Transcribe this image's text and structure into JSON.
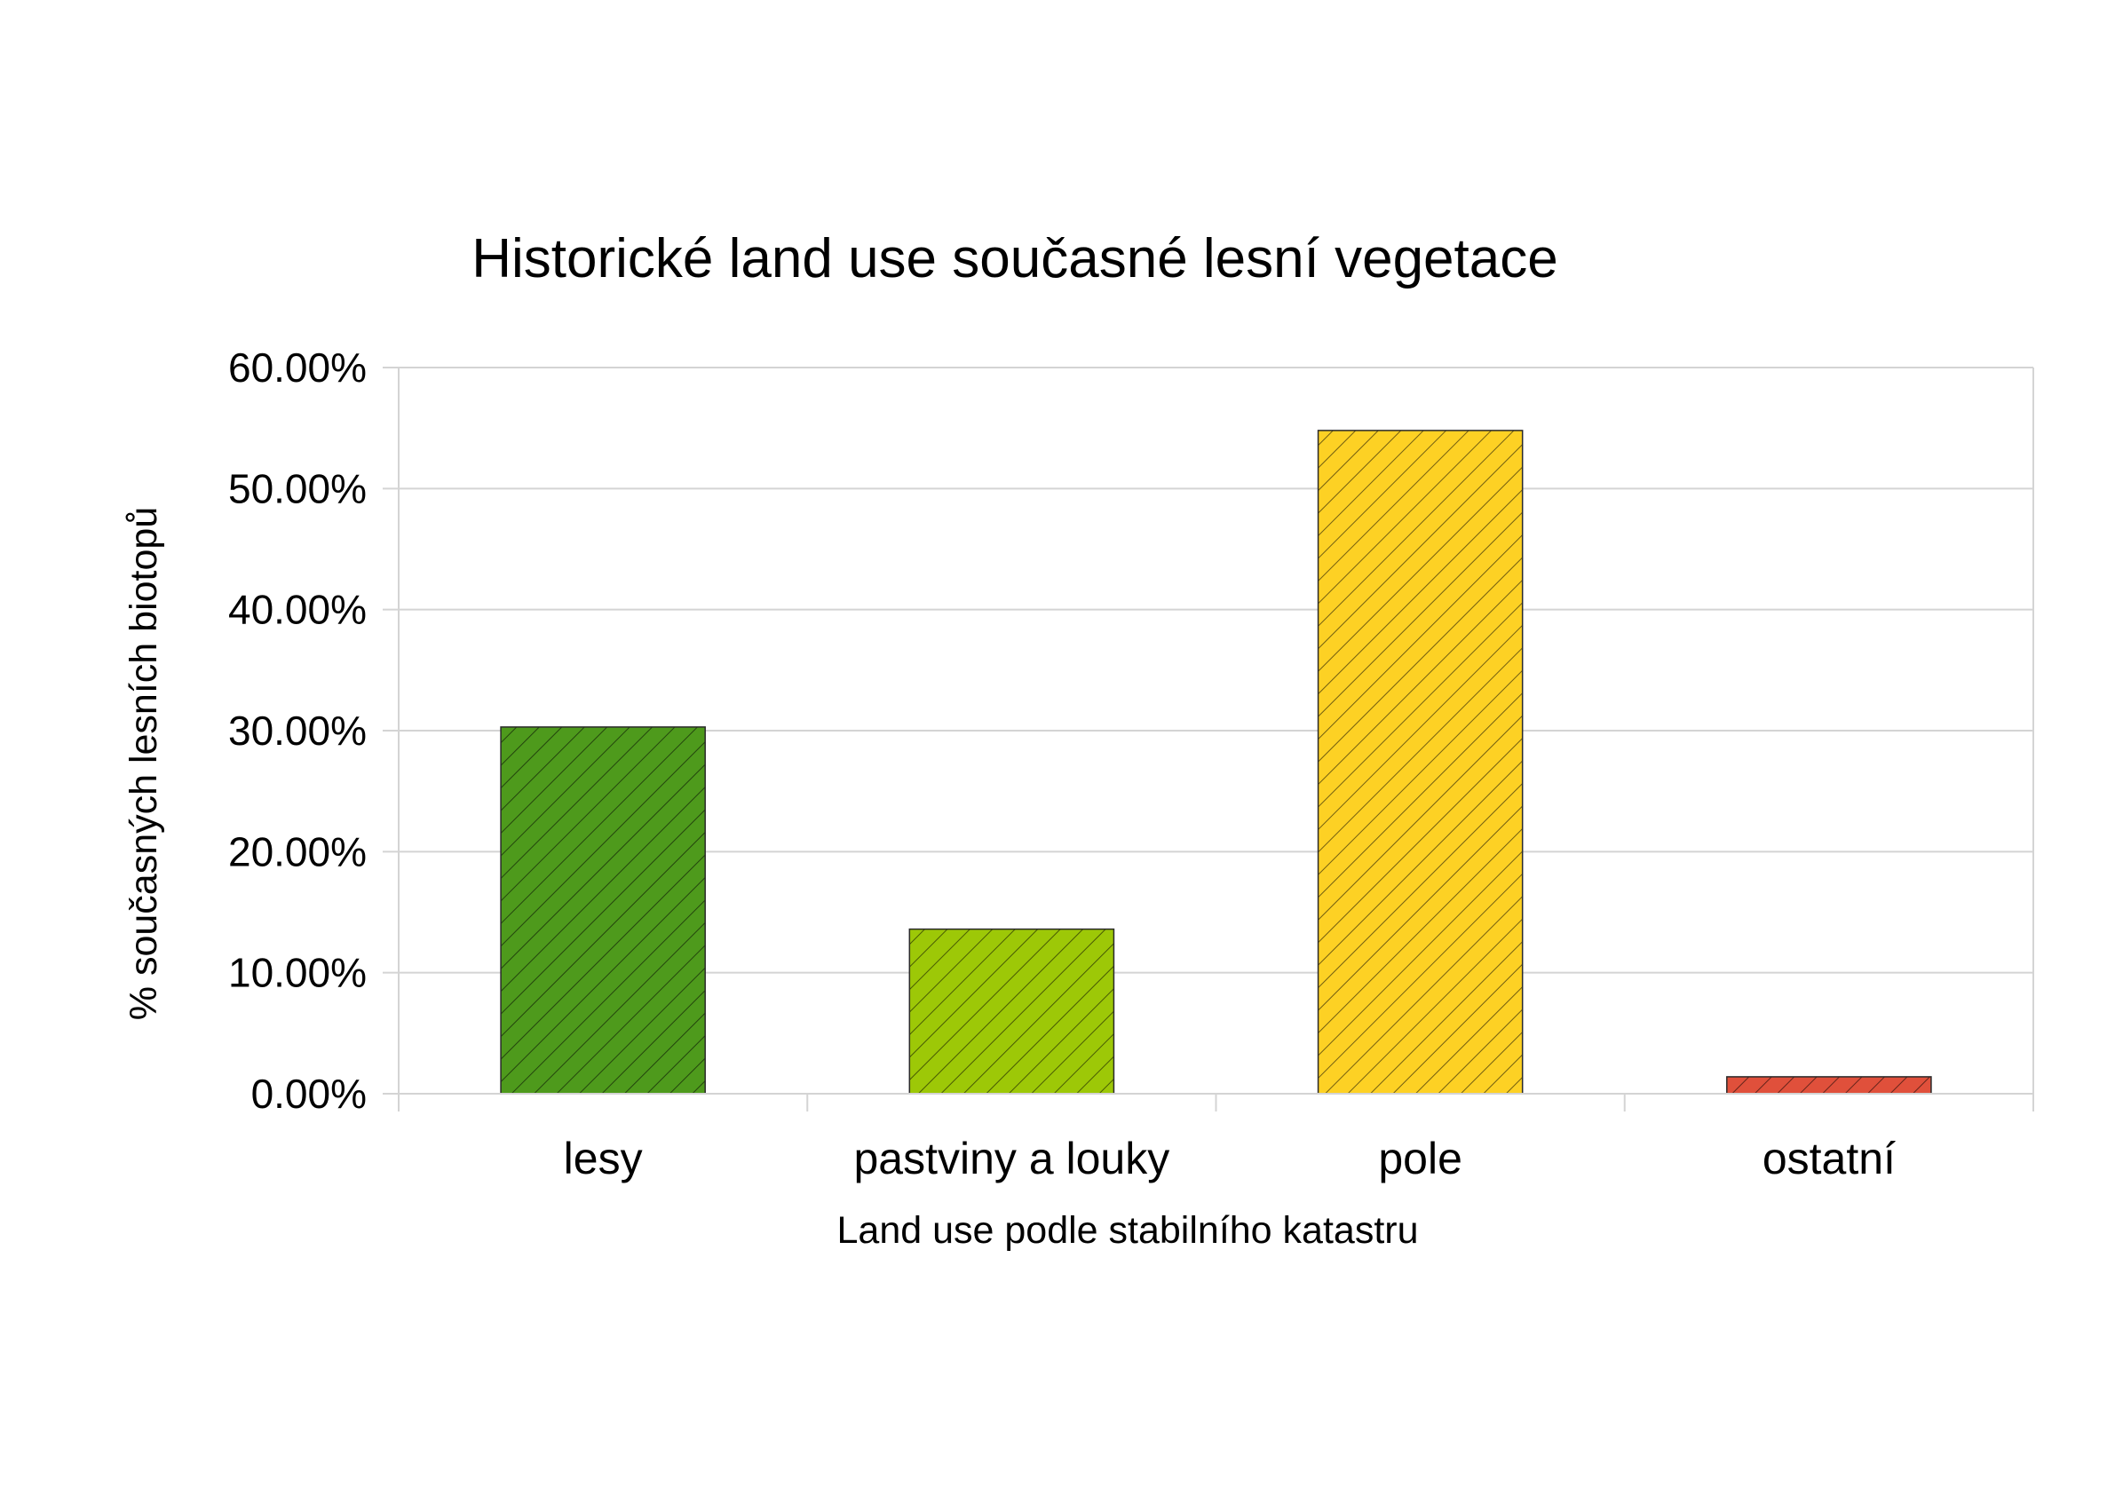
{
  "chart_data": {
    "type": "bar",
    "title": "Historické land use současné lesní vegetace",
    "xlabel": "Land use podle stabilního katastru",
    "ylabel": "% současných lesních biotopů",
    "categories": [
      "lesy",
      "pastviny a louky",
      "pole",
      "ostatní"
    ],
    "values": [
      30.3,
      13.6,
      54.8,
      1.4
    ],
    "colors": [
      "#4e9a1c",
      "#9dc807",
      "#fdd124",
      "#e0503b"
    ],
    "ylim": [
      0,
      60
    ],
    "yticks": [
      0,
      10,
      20,
      30,
      40,
      50,
      60
    ],
    "ytick_labels": [
      "0.00%",
      "10.00%",
      "20.00%",
      "30.00%",
      "40.00%",
      "50.00%",
      "60.00%"
    ],
    "grid": true,
    "pattern": "diagonal-hatch",
    "legend": "none"
  }
}
